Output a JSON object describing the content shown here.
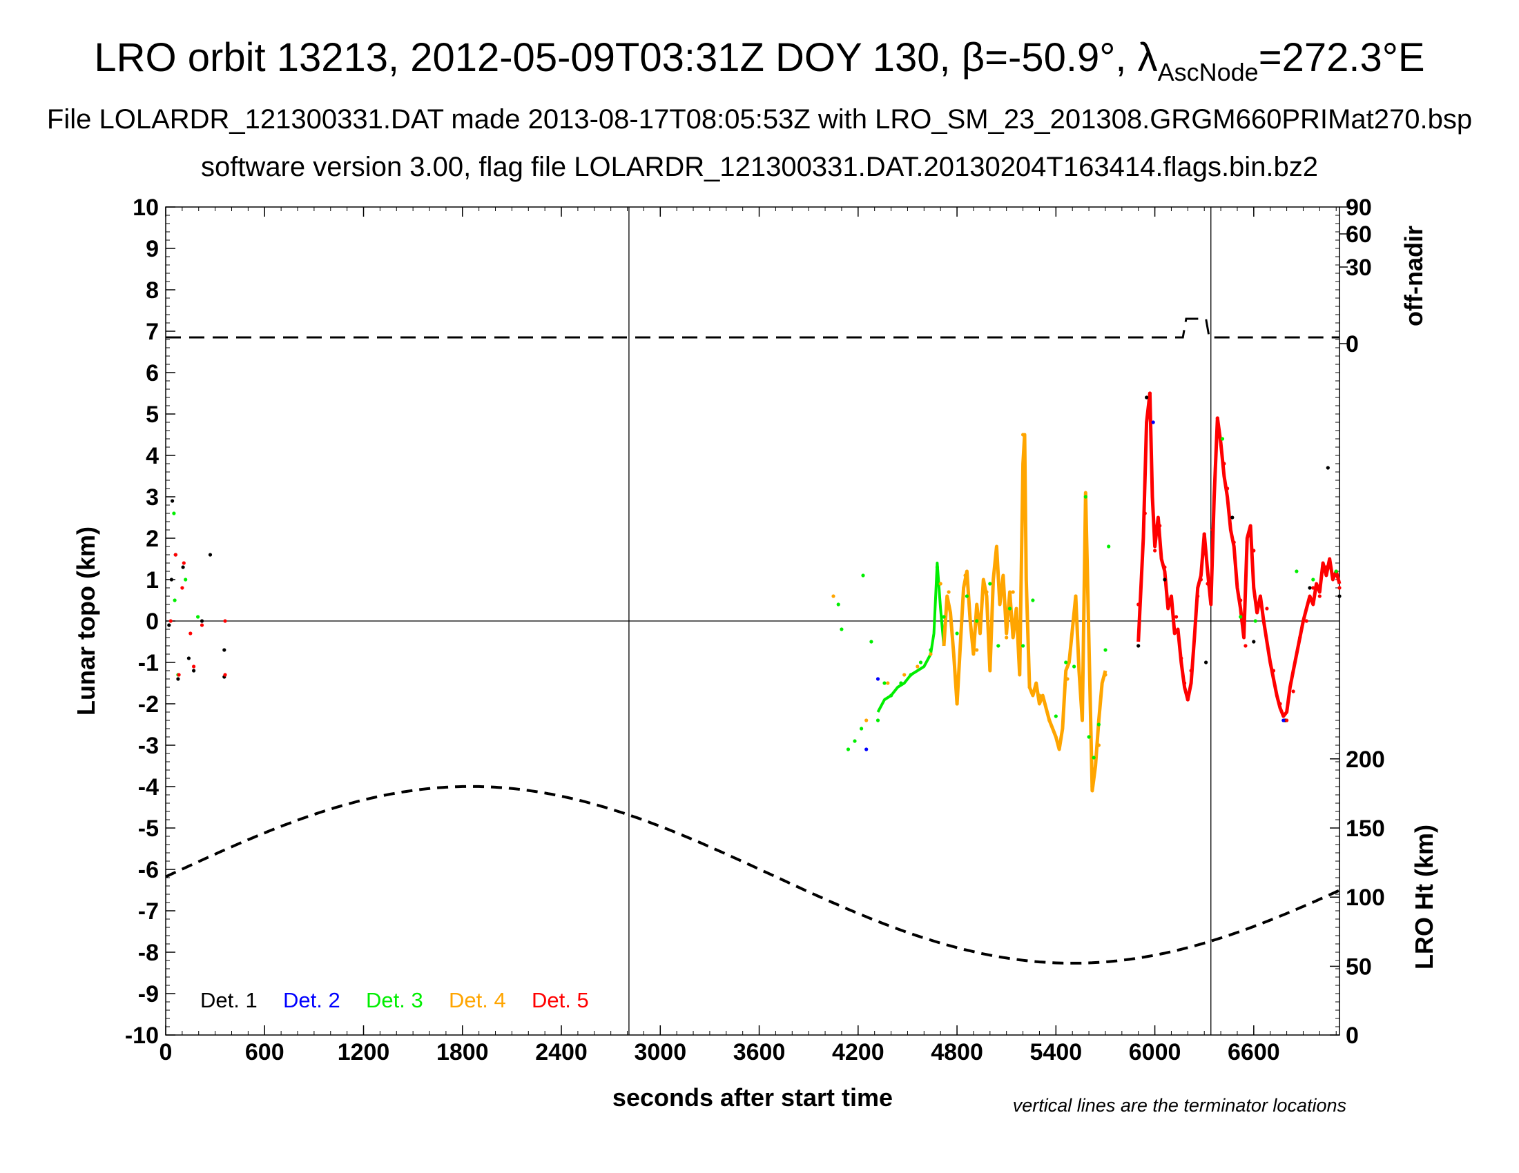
{
  "title": {
    "main_prefix": "LRO orbit 13213, 2012-05-09T03:31Z DOY 130, β=-50.9°, λ",
    "main_sub": "AscNode",
    "main_suffix": "=272.3°E",
    "line2": "File LOLARDR_121300331.DAT made 2013-08-17T08:05:53Z with LRO_SM_23_201308.GRGM660PRIMat270.bsp",
    "line3": "software version 3.00, flag file LOLARDR_121300331.DAT.20130204T163414.flags.bin.bz2"
  },
  "note": "vertical lines are the terminator locations",
  "chart_data": {
    "type": "scatter",
    "xlabel": "seconds after start time",
    "ylabel": "Lunar topo (km)",
    "xlim": [
      0,
      7120
    ],
    "ylim": [
      -10,
      10
    ],
    "x_ticks": [
      0,
      600,
      1200,
      1800,
      2400,
      3000,
      3600,
      4200,
      4800,
      5400,
      6000,
      6600
    ],
    "y_ticks": [
      -10,
      -9,
      -8,
      -7,
      -6,
      -5,
      -4,
      -3,
      -2,
      -1,
      0,
      1,
      2,
      3,
      4,
      5,
      6,
      7,
      8,
      9,
      10
    ],
    "terminator_lines_x": [
      2810,
      6340
    ],
    "right_axis_top": {
      "label": "off-nadir",
      "ticks": [
        {
          "label": "90",
          "at_topo": 10.0
        },
        {
          "label": "60",
          "at_topo": 9.35
        },
        {
          "label": "30",
          "at_topo": 8.55
        },
        {
          "label": "0",
          "at_topo": 6.7
        }
      ],
      "off_nadir_trace": {
        "base_topo": 6.85,
        "raised_topo": 7.3,
        "raised_from_x": 6170,
        "raised_to_x": 6330
      }
    },
    "right_axis_bottom": {
      "label": "LRO Ht (km)",
      "ticks": [
        0,
        50,
        100,
        150,
        200
      ],
      "tick_topo_positions": [
        -10,
        -8.34,
        -6.67,
        -5.0,
        -3.33
      ],
      "altitude_curve": {
        "mean_km": 116,
        "amplitude_km": 64,
        "peak_x": 1850,
        "period_s": 7300
      }
    },
    "legend": [
      {
        "name": "Det. 1",
        "color": "#000000"
      },
      {
        "name": "Det. 2",
        "color": "#0000ff"
      },
      {
        "name": "Det. 3",
        "color": "#00ee00"
      },
      {
        "name": "Det. 4",
        "color": "#ffa500"
      },
      {
        "name": "Det. 5",
        "color": "#ff0000"
      }
    ],
    "series": [
      {
        "name": "Det. 1",
        "color": "#000000",
        "points": [
          [
            20,
            -0.1
          ],
          [
            35,
            1.0
          ],
          [
            40,
            2.9
          ],
          [
            60,
            1.6
          ],
          [
            75,
            -1.4
          ],
          [
            105,
            1.3
          ],
          [
            140,
            -0.9
          ],
          [
            170,
            -1.2
          ],
          [
            220,
            0.0
          ],
          [
            270,
            1.6
          ],
          [
            355,
            -0.7
          ],
          [
            355,
            -1.35
          ],
          [
            5900,
            -0.6
          ],
          [
            5950,
            5.4
          ],
          [
            6060,
            1.0
          ],
          [
            6310,
            -1.0
          ],
          [
            6470,
            2.5
          ],
          [
            6600,
            -0.5
          ],
          [
            6790,
            -2.4
          ],
          [
            6940,
            0.8
          ],
          [
            7050,
            3.7
          ],
          [
            7120,
            0.6
          ]
        ]
      },
      {
        "name": "Det. 2",
        "color": "#0000ff",
        "points": [
          [
            4250,
            -3.1
          ],
          [
            4320,
            -1.4
          ],
          [
            5990,
            4.8
          ],
          [
            6780,
            -2.4
          ]
        ]
      },
      {
        "name": "Det. 3",
        "color": "#00ee00",
        "points": [
          [
            50,
            2.6
          ],
          [
            55,
            0.5
          ],
          [
            75,
            -1.3
          ],
          [
            120,
            1.0
          ],
          [
            195,
            0.1
          ],
          [
            4080,
            0.4
          ],
          [
            4100,
            -0.2
          ],
          [
            4140,
            -3.1
          ],
          [
            4180,
            -2.9
          ],
          [
            4220,
            -2.6
          ],
          [
            4230,
            1.1
          ],
          [
            4280,
            -0.5
          ],
          [
            4320,
            -2.4
          ],
          [
            4360,
            -1.5
          ],
          [
            4400,
            -1.8
          ],
          [
            4460,
            -1.5
          ],
          [
            4520,
            -1.3
          ],
          [
            4580,
            -1.0
          ],
          [
            4640,
            -0.7
          ],
          [
            4680,
            1.3
          ],
          [
            4720,
            0.1
          ],
          [
            4800,
            -0.3
          ],
          [
            4860,
            0.6
          ],
          [
            4920,
            0.0
          ],
          [
            5000,
            0.9
          ],
          [
            5050,
            -0.6
          ],
          [
            5120,
            0.3
          ],
          [
            5200,
            -0.6
          ],
          [
            5260,
            0.5
          ],
          [
            5300,
            -1.8
          ],
          [
            5400,
            -2.3
          ],
          [
            5460,
            -1.0
          ],
          [
            5510,
            -1.1
          ],
          [
            5580,
            3.0
          ],
          [
            5600,
            -2.8
          ],
          [
            5630,
            -3.3
          ],
          [
            5660,
            -2.5
          ],
          [
            5700,
            -0.7
          ],
          [
            5720,
            1.8
          ],
          [
            6410,
            4.4
          ],
          [
            6520,
            0.1
          ],
          [
            6610,
            0.0
          ],
          [
            6860,
            1.2
          ],
          [
            6960,
            1.0
          ],
          [
            7100,
            1.2
          ]
        ]
      },
      {
        "name": "Det. 4",
        "color": "#ffa500",
        "points": [
          [
            4050,
            0.6
          ],
          [
            4250,
            -2.4
          ],
          [
            4380,
            -1.5
          ],
          [
            4480,
            -1.3
          ],
          [
            4560,
            -1.1
          ],
          [
            4640,
            -0.8
          ],
          [
            4700,
            0.9
          ],
          [
            4750,
            0.7
          ],
          [
            4800,
            -2.0
          ],
          [
            4850,
            1.1
          ],
          [
            4920,
            -0.7
          ],
          [
            4980,
            0.7
          ],
          [
            5040,
            1.4
          ],
          [
            5100,
            -0.4
          ],
          [
            5140,
            0.7
          ],
          [
            5180,
            -0.9
          ],
          [
            5200,
            4.5
          ],
          [
            5240,
            -1.6
          ],
          [
            5300,
            -1.8
          ],
          [
            5360,
            -2.4
          ],
          [
            5420,
            -3.0
          ],
          [
            5470,
            -1.4
          ],
          [
            5520,
            0.6
          ],
          [
            5560,
            -2.1
          ],
          [
            5580,
            2.8
          ],
          [
            5620,
            -4.0
          ],
          [
            5660,
            -3.0
          ],
          [
            5700,
            -1.3
          ]
        ]
      },
      {
        "name": "Det. 5",
        "color": "#ff0000",
        "points": [
          [
            30,
            0.0
          ],
          [
            60,
            1.6
          ],
          [
            80,
            -1.3
          ],
          [
            100,
            0.8
          ],
          [
            110,
            1.4
          ],
          [
            150,
            -0.3
          ],
          [
            170,
            -1.1
          ],
          [
            220,
            -0.1
          ],
          [
            360,
            0.0
          ],
          [
            360,
            -1.3
          ],
          [
            5900,
            0.4
          ],
          [
            5940,
            2.6
          ],
          [
            5970,
            5.5
          ],
          [
            6000,
            1.7
          ],
          [
            6030,
            2.3
          ],
          [
            6060,
            1.3
          ],
          [
            6100,
            0.4
          ],
          [
            6130,
            0.1
          ],
          [
            6160,
            -0.9
          ],
          [
            6180,
            -1.5
          ],
          [
            6200,
            -1.9
          ],
          [
            6220,
            -1.2
          ],
          [
            6260,
            0.6
          ],
          [
            6280,
            1.0
          ],
          [
            6300,
            2.1
          ],
          [
            6320,
            0.9
          ],
          [
            6350,
            2.2
          ],
          [
            6380,
            4.9
          ],
          [
            6420,
            3.8
          ],
          [
            6440,
            3.2
          ],
          [
            6480,
            1.9
          ],
          [
            6520,
            0.5
          ],
          [
            6550,
            -0.6
          ],
          [
            6600,
            1.7
          ],
          [
            6640,
            0.5
          ],
          [
            6680,
            0.3
          ],
          [
            6720,
            -1.2
          ],
          [
            6760,
            -2.0
          ],
          [
            6800,
            -2.4
          ],
          [
            6840,
            -1.7
          ],
          [
            6880,
            -0.4
          ],
          [
            6920,
            0.0
          ],
          [
            6960,
            0.8
          ],
          [
            7000,
            0.6
          ],
          [
            7040,
            1.3
          ],
          [
            7080,
            1.1
          ],
          [
            7120,
            0.8
          ]
        ]
      }
    ],
    "segments": [
      {
        "color": "#00ee00",
        "width": 4,
        "points": [
          [
            4320,
            -2.2
          ],
          [
            4360,
            -1.9
          ],
          [
            4400,
            -1.8
          ],
          [
            4440,
            -1.6
          ],
          [
            4480,
            -1.5
          ],
          [
            4520,
            -1.3
          ],
          [
            4560,
            -1.2
          ],
          [
            4600,
            -1.1
          ],
          [
            4640,
            -0.8
          ],
          [
            4660,
            -0.3
          ],
          [
            4680,
            1.4
          ],
          [
            4700,
            0.3
          ],
          [
            4720,
            -0.6
          ]
        ]
      },
      {
        "color": "#ffa500",
        "width": 5,
        "points": [
          [
            4720,
            -0.6
          ],
          [
            4740,
            0.6
          ],
          [
            4760,
            0.2
          ],
          [
            4780,
            -0.8
          ],
          [
            4800,
            -2.0
          ],
          [
            4820,
            -0.6
          ],
          [
            4840,
            0.8
          ],
          [
            4860,
            1.2
          ],
          [
            4880,
            0.0
          ],
          [
            4900,
            -0.8
          ],
          [
            4920,
            0.4
          ],
          [
            4940,
            -0.3
          ],
          [
            4960,
            1.0
          ],
          [
            4980,
            0.6
          ],
          [
            5000,
            -1.2
          ],
          [
            5020,
            1.0
          ],
          [
            5040,
            1.8
          ],
          [
            5060,
            0.4
          ],
          [
            5080,
            1.1
          ],
          [
            5100,
            -0.3
          ],
          [
            5120,
            0.7
          ],
          [
            5140,
            -0.4
          ],
          [
            5160,
            0.3
          ],
          [
            5180,
            -1.3
          ],
          [
            5200,
            3.8
          ],
          [
            5210,
            4.5
          ],
          [
            5220,
            1.0
          ],
          [
            5240,
            -1.6
          ],
          [
            5260,
            -1.8
          ],
          [
            5280,
            -1.5
          ],
          [
            5300,
            -2.0
          ],
          [
            5320,
            -1.8
          ],
          [
            5340,
            -2.1
          ],
          [
            5360,
            -2.4
          ],
          [
            5380,
            -2.6
          ],
          [
            5400,
            -2.8
          ],
          [
            5420,
            -3.1
          ],
          [
            5440,
            -2.6
          ],
          [
            5460,
            -1.2
          ],
          [
            5480,
            -1.0
          ],
          [
            5500,
            -0.2
          ],
          [
            5520,
            0.6
          ],
          [
            5540,
            -1.2
          ],
          [
            5560,
            -2.4
          ],
          [
            5580,
            3.1
          ],
          [
            5600,
            -0.5
          ],
          [
            5620,
            -4.1
          ],
          [
            5640,
            -3.5
          ],
          [
            5660,
            -2.4
          ],
          [
            5680,
            -1.5
          ],
          [
            5700,
            -1.2
          ]
        ]
      },
      {
        "color": "#ff0000",
        "width": 5,
        "points": [
          [
            5900,
            -0.5
          ],
          [
            5930,
            2.0
          ],
          [
            5950,
            4.8
          ],
          [
            5970,
            5.5
          ],
          [
            5985,
            3.0
          ],
          [
            6000,
            1.8
          ],
          [
            6020,
            2.5
          ],
          [
            6040,
            1.5
          ],
          [
            6060,
            1.2
          ],
          [
            6080,
            0.3
          ],
          [
            6100,
            0.6
          ],
          [
            6120,
            -0.3
          ],
          [
            6140,
            -0.2
          ],
          [
            6160,
            -1.0
          ],
          [
            6180,
            -1.6
          ],
          [
            6200,
            -1.9
          ],
          [
            6220,
            -1.5
          ],
          [
            6240,
            -0.4
          ],
          [
            6260,
            0.8
          ],
          [
            6280,
            1.1
          ],
          [
            6300,
            2.1
          ],
          [
            6320,
            1.2
          ],
          [
            6340,
            0.4
          ],
          [
            6360,
            3.0
          ],
          [
            6380,
            4.9
          ],
          [
            6400,
            4.3
          ],
          [
            6420,
            3.5
          ],
          [
            6440,
            3.0
          ],
          [
            6460,
            2.2
          ],
          [
            6480,
            1.8
          ],
          [
            6500,
            0.8
          ],
          [
            6520,
            0.3
          ],
          [
            6540,
            -0.4
          ],
          [
            6560,
            2.0
          ],
          [
            6580,
            2.3
          ],
          [
            6600,
            0.8
          ],
          [
            6620,
            0.2
          ],
          [
            6640,
            0.6
          ],
          [
            6660,
            0.0
          ],
          [
            6680,
            -0.5
          ],
          [
            6700,
            -1.0
          ],
          [
            6720,
            -1.4
          ],
          [
            6740,
            -1.8
          ],
          [
            6760,
            -2.1
          ],
          [
            6780,
            -2.3
          ],
          [
            6800,
            -2.2
          ],
          [
            6820,
            -1.6
          ],
          [
            6840,
            -1.2
          ],
          [
            6860,
            -0.8
          ],
          [
            6880,
            -0.4
          ],
          [
            6900,
            0.0
          ],
          [
            6920,
            0.3
          ],
          [
            6940,
            0.6
          ],
          [
            6960,
            0.4
          ],
          [
            6980,
            0.9
          ],
          [
            7000,
            0.7
          ],
          [
            7020,
            1.4
          ],
          [
            7040,
            1.1
          ],
          [
            7060,
            1.5
          ],
          [
            7080,
            1.0
          ],
          [
            7100,
            1.2
          ],
          [
            7120,
            0.9
          ]
        ]
      }
    ]
  }
}
